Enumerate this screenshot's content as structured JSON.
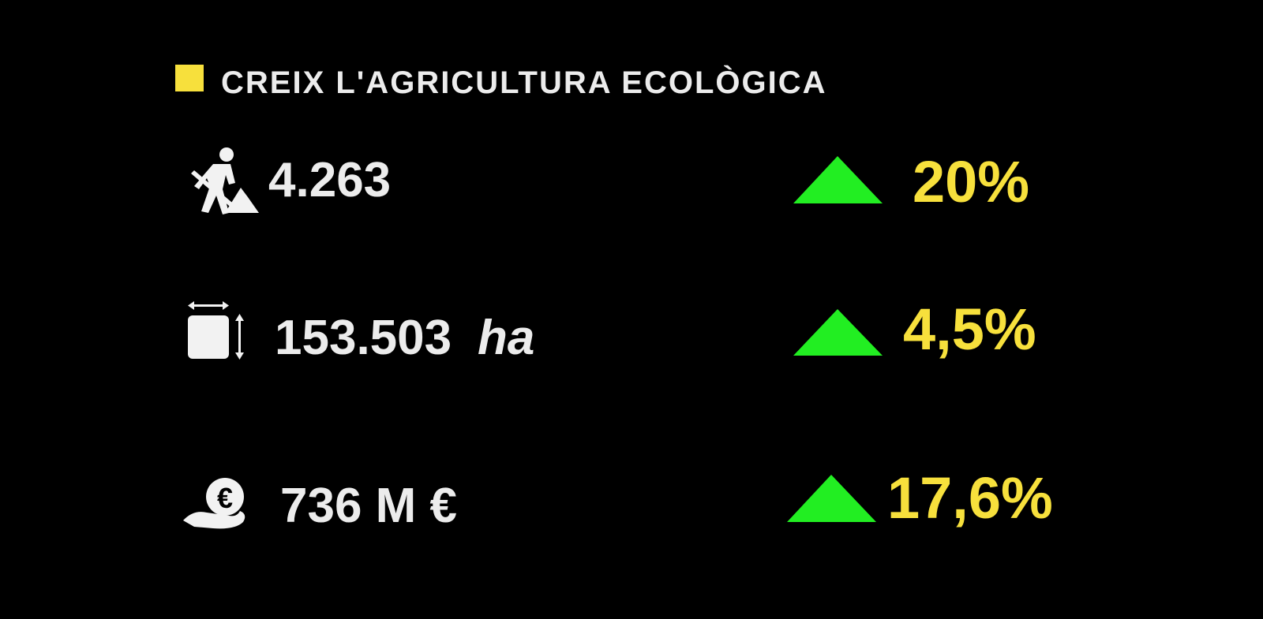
{
  "header": {
    "title": "CREIX L'AGRICULTURA ECOLÒGICA"
  },
  "rows": [
    {
      "value": "4.263",
      "change": "20%"
    },
    {
      "value": "153.503",
      "unit": "ha",
      "change": "4,5%"
    },
    {
      "value": "736 M €",
      "change": "17,6%"
    }
  ]
}
